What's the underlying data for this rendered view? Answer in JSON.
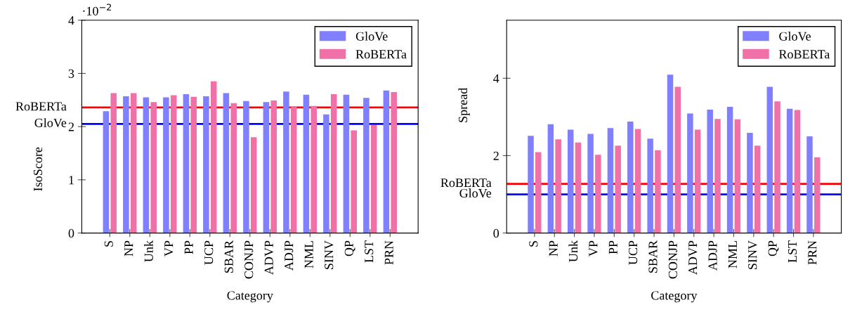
{
  "chart_data": [
    {
      "type": "bar",
      "xlabel": "Category",
      "ylabel": "IsoScore",
      "categories": [
        "S",
        "NP",
        "Unk",
        "VP",
        "PP",
        "UCP",
        "SBAR",
        "CONJP",
        "ADVP",
        "ADJP",
        "NML",
        "SINV",
        "QP",
        "LST",
        "PRN"
      ],
      "series": [
        {
          "name": "GloVe",
          "color": "#8080ff",
          "values": [
            2.29,
            2.57,
            2.55,
            2.55,
            2.61,
            2.57,
            2.63,
            2.48,
            2.46,
            2.66,
            2.6,
            2.23,
            2.6,
            2.54,
            2.68
          ]
        },
        {
          "name": "RoBERTa",
          "color": "#f070a8",
          "values": [
            2.63,
            2.63,
            2.46,
            2.59,
            2.56,
            2.85,
            2.44,
            1.8,
            2.49,
            2.37,
            2.39,
            2.61,
            1.93,
            2.03,
            2.65
          ]
        }
      ],
      "ylim": [
        0,
        4
      ],
      "yticks": [
        0,
        1,
        2,
        3,
        4
      ],
      "ref_lines": [
        {
          "axis": "y",
          "value": 2.36,
          "label": "RoBERTa",
          "color": "#ff0000"
        },
        {
          "axis": "y",
          "value": 2.05,
          "label": "GloVe",
          "color": "#0000ff"
        }
      ],
      "annotations": [
        "·10$^{−2}$"
      ],
      "legend": "top right",
      "grid": false
    },
    {
      "type": "bar",
      "xlabel": "Category",
      "ylabel": "Spread",
      "categories": [
        "S",
        "NP",
        "Unk",
        "VP",
        "PP",
        "UCP",
        "SBAR",
        "CONJP",
        "ADVP",
        "ADJP",
        "NML",
        "SINV",
        "QP",
        "LST",
        "PRN"
      ],
      "series": [
        {
          "name": "GloVe",
          "color": "#8080ff",
          "values": [
            2.51,
            2.81,
            2.67,
            2.56,
            2.71,
            2.88,
            2.44,
            4.09,
            3.09,
            3.19,
            3.26,
            2.59,
            3.78,
            3.21,
            2.5
          ]
        },
        {
          "name": "RoBERTa",
          "color": "#f070a8",
          "values": [
            2.09,
            2.42,
            2.34,
            2.02,
            2.26,
            2.69,
            2.14,
            3.78,
            2.67,
            2.95,
            2.94,
            2.26,
            3.4,
            3.18,
            1.96
          ]
        }
      ],
      "ylim": [
        0,
        5.5
      ],
      "yticks": [
        0,
        2,
        4
      ],
      "ref_lines": [
        {
          "axis": "y",
          "value": 1.27,
          "label": "RoBERTa",
          "color": "#ff0000"
        },
        {
          "axis": "y",
          "value": 1.0,
          "label": "GloVe",
          "color": "#0000ff"
        }
      ],
      "legend": "top right",
      "grid": false
    }
  ]
}
